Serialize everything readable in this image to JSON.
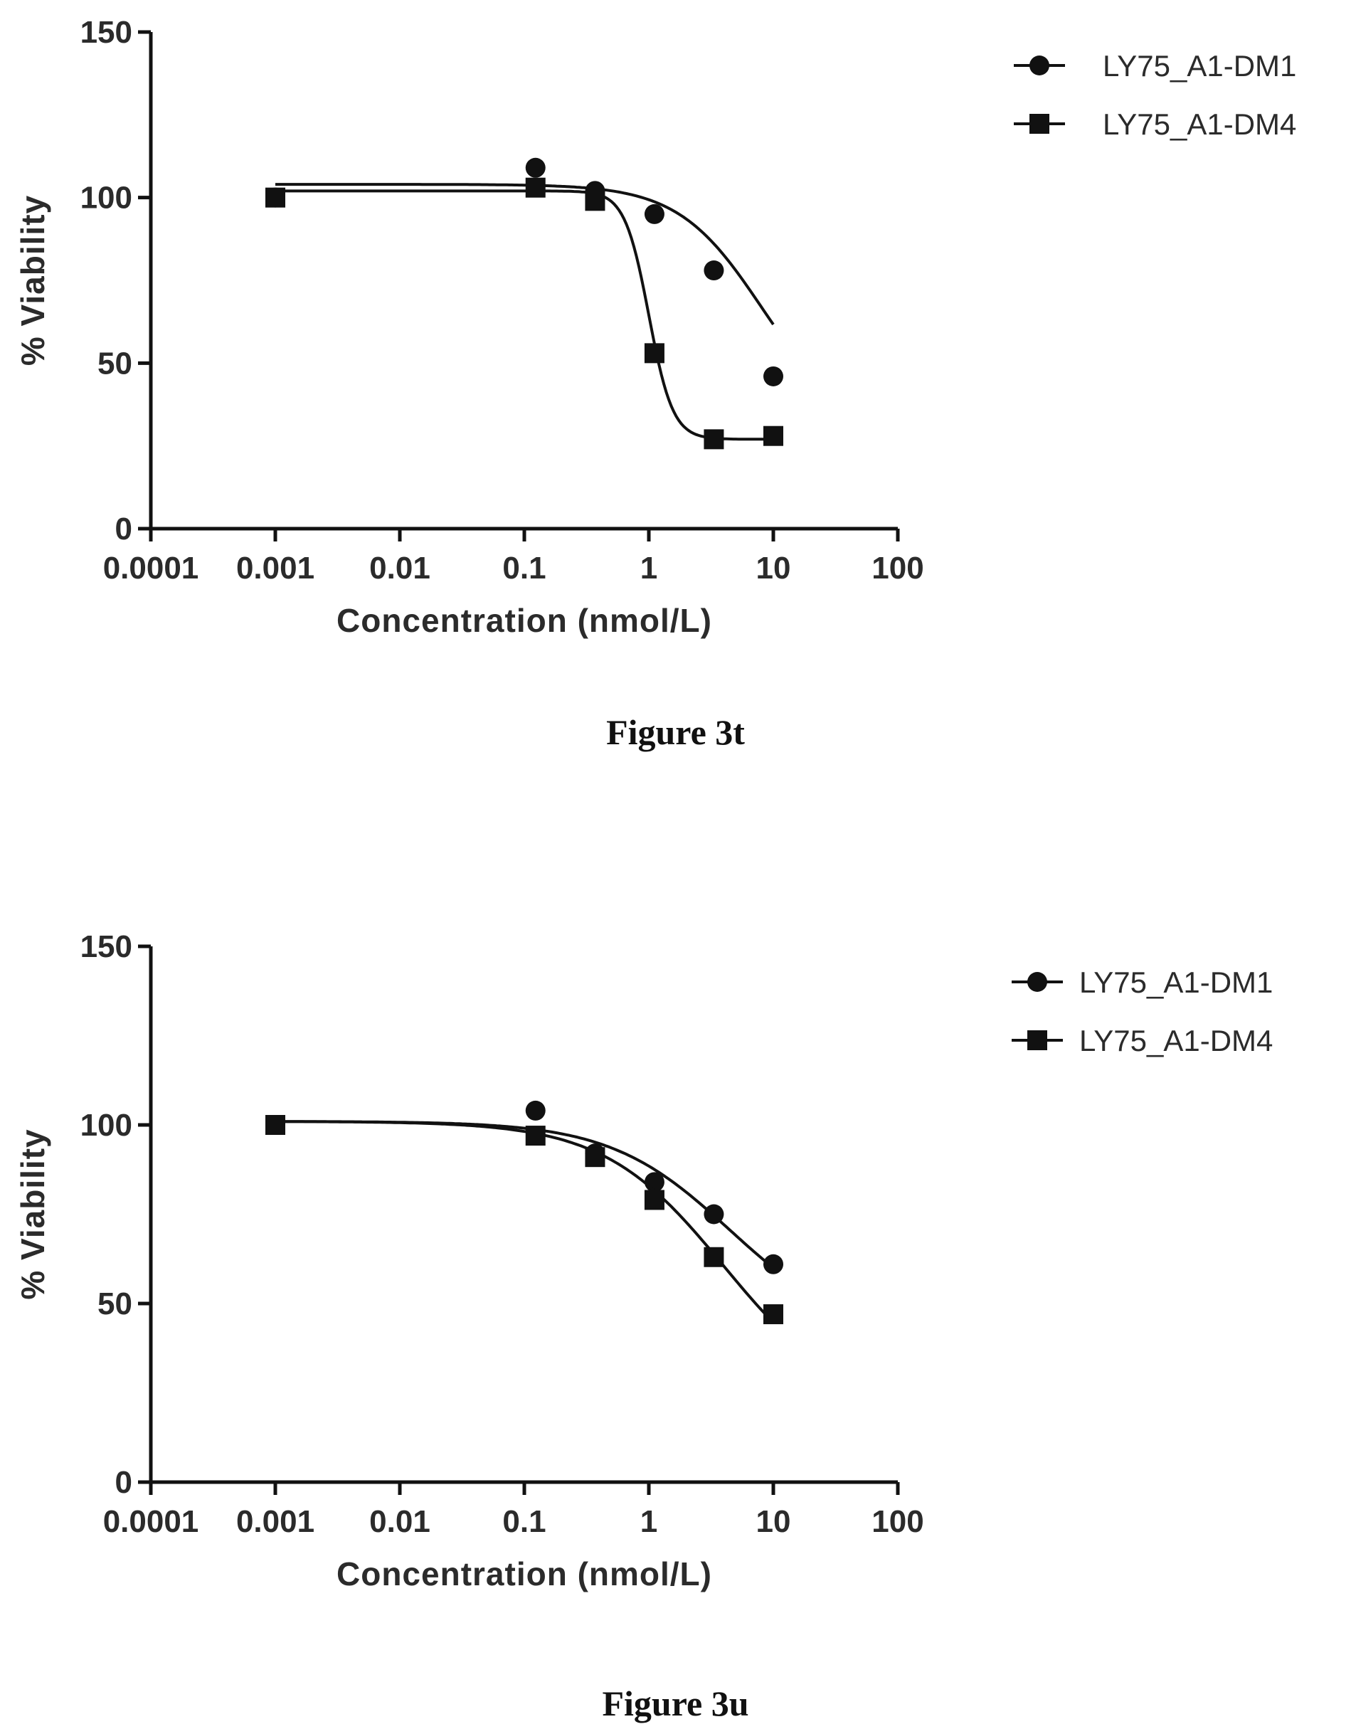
{
  "chart_data": [
    {
      "type": "line",
      "caption": "Figure 3t",
      "xlabel": "Concentration (nmol/L)",
      "ylabel": "% Viability",
      "xscale": "log",
      "xlim": [
        0.0001,
        100
      ],
      "ylim": [
        0,
        150
      ],
      "xticks": [
        0.0001,
        0.001,
        0.01,
        0.1,
        1,
        10,
        100
      ],
      "xtick_labels": [
        "0.0001",
        "0.001",
        "0.01",
        "0.1",
        "1",
        "10",
        "100"
      ],
      "yticks": [
        0,
        50,
        100,
        150
      ],
      "ytick_labels": [
        "0",
        "50",
        "100",
        "150"
      ],
      "legend_position": "top-right",
      "grid": false,
      "series": [
        {
          "name": "LY75_A1-DM1",
          "marker": "circle",
          "color": "#111111",
          "x": [
            0.001,
            0.123,
            0.37,
            1.11,
            3.33,
            10
          ],
          "y": [
            100,
            109,
            102,
            95,
            78,
            46
          ],
          "fit": {
            "top": 104,
            "bottom": 30,
            "ec50": 8.0,
            "hill": 1.3
          }
        },
        {
          "name": "LY75_A1-DM4",
          "marker": "square",
          "color": "#111111",
          "x": [
            0.001,
            0.123,
            0.37,
            1.11,
            3.33,
            10
          ],
          "y": [
            100,
            103,
            99,
            53,
            27,
            28
          ],
          "fit": {
            "top": 102,
            "bottom": 27,
            "ec50": 1.0,
            "hill": 4.5
          }
        }
      ]
    },
    {
      "type": "line",
      "caption": "Figure 3u",
      "xlabel": "Concentration (nmol/L)",
      "ylabel": "% Viability",
      "xscale": "log",
      "xlim": [
        0.0001,
        100
      ],
      "ylim": [
        0,
        150
      ],
      "xticks": [
        0.0001,
        0.001,
        0.01,
        0.1,
        1,
        10,
        100
      ],
      "xtick_labels": [
        "0.0001",
        "0.001",
        "0.01",
        "0.1",
        "1",
        "10",
        "100"
      ],
      "yticks": [
        0,
        50,
        100,
        150
      ],
      "ytick_labels": [
        "0",
        "50",
        "100",
        "150"
      ],
      "legend_position": "top-right",
      "grid": false,
      "series": [
        {
          "name": "LY75_A1-DM1",
          "marker": "circle",
          "color": "#111111",
          "x": [
            0.001,
            0.123,
            0.37,
            1.11,
            3.33,
            10
          ],
          "y": [
            100,
            104,
            92,
            84,
            75,
            61
          ],
          "fit": {
            "top": 101,
            "bottom": 40,
            "ec50": 4.5,
            "hill": 0.9
          }
        },
        {
          "name": "LY75_A1-DM4",
          "marker": "square",
          "color": "#111111",
          "x": [
            0.001,
            0.123,
            0.37,
            1.11,
            3.33,
            10
          ],
          "y": [
            100,
            97,
            91,
            79,
            63,
            47
          ],
          "fit": {
            "top": 101,
            "bottom": 20,
            "ec50": 4.0,
            "hill": 0.9
          }
        }
      ]
    }
  ]
}
